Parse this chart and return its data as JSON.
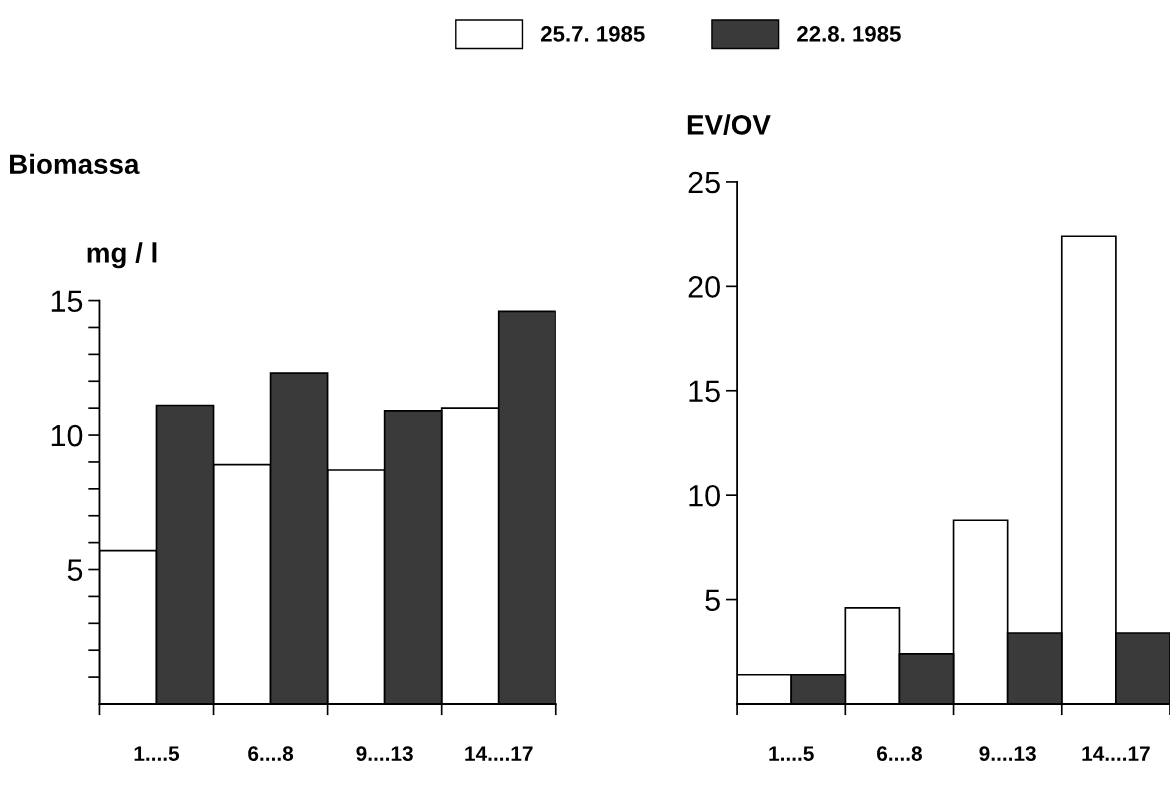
{
  "chart_data": [
    {
      "type": "bar",
      "title": "Biomassa",
      "ylabel": "mg / l",
      "categories": [
        "1....5",
        "6....8",
        "9....13",
        "14....17"
      ],
      "series": [
        {
          "name": "25.7. 1985",
          "color": "#ffffff",
          "values": [
            5.7,
            8.9,
            8.7,
            11.0
          ]
        },
        {
          "name": "22.8. 1985",
          "color": "#3a3a3a",
          "values": [
            11.1,
            12.3,
            10.9,
            14.6
          ]
        }
      ],
      "ylim": [
        0,
        15
      ],
      "yticks": [
        {
          "value": 1,
          "label": null
        },
        {
          "value": 2,
          "label": null
        },
        {
          "value": 3,
          "label": null
        },
        {
          "value": 4,
          "label": null
        },
        5,
        {
          "value": 6,
          "label": null
        },
        {
          "value": 7,
          "label": null
        },
        {
          "value": 8,
          "label": null
        },
        {
          "value": 9,
          "label": null
        },
        10,
        {
          "value": 11,
          "label": null
        },
        {
          "value": 12,
          "label": null
        },
        {
          "value": 13,
          "label": null
        },
        {
          "value": 14,
          "label": null
        },
        15
      ],
      "legend": "top",
      "grid": false
    },
    {
      "type": "bar",
      "ylabel": "EV/OV",
      "categories": [
        "1....5",
        "6....8",
        "9....13",
        "14....17"
      ],
      "series": [
        {
          "color": "#ffffff",
          "values": [
            1.4,
            4.6,
            8.8,
            22.4
          ]
        },
        {
          "color": "#3a3a3a",
          "values": [
            1.4,
            2.4,
            3.4,
            3.4
          ]
        }
      ],
      "ylim": [
        0,
        25
      ],
      "yticks": [
        5,
        10,
        15,
        20,
        25
      ],
      "grid": false
    }
  ]
}
